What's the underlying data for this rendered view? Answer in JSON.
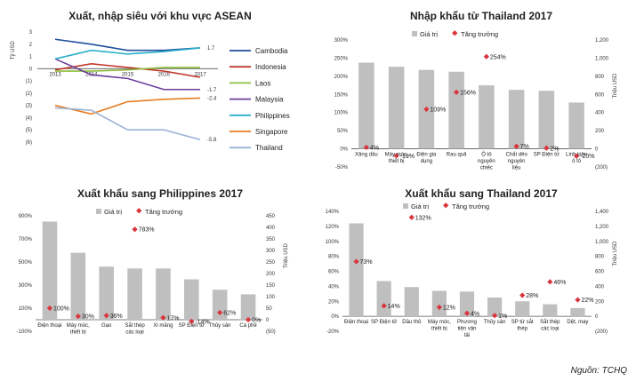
{
  "source": "Nguồn: TCHQ",
  "chart_data": [
    {
      "type": "line",
      "title": "Xuất, nhập siêu với khu vực ASEAN",
      "ylabel": "Tỷ USD",
      "ylim": [
        -6,
        3
      ],
      "yticks": [
        "3",
        "2",
        "1",
        "0",
        "(1)",
        "(2)",
        "(3)",
        "(4)",
        "(5)",
        "(6)"
      ],
      "x": [
        "2013",
        "2014",
        "2015",
        "2016",
        "2017"
      ],
      "legend_position": "right",
      "end_labels": [
        "1.7",
        "-1.7",
        "-2.4",
        "-5.8"
      ],
      "series": [
        {
          "name": "Cambodia",
          "color": "#1f4e9c",
          "values": [
            2.4,
            2.0,
            1.5,
            1.5,
            1.7
          ]
        },
        {
          "name": "Indonesia",
          "color": "#c0392b",
          "values": [
            -0.1,
            0.4,
            0.1,
            -0.2,
            -0.7
          ]
        },
        {
          "name": "Laos",
          "color": "#8fbc3c",
          "values": [
            -0.2,
            -0.2,
            -0.1,
            0.1,
            0.1
          ]
        },
        {
          "name": "Malaysia",
          "color": "#6a3d9a",
          "values": [
            0.8,
            -0.5,
            -0.8,
            -1.7,
            -1.7
          ]
        },
        {
          "name": "Philippines",
          "color": "#2ab0c8",
          "values": [
            0.8,
            1.5,
            1.2,
            1.4,
            1.7
          ]
        },
        {
          "name": "Singapore",
          "color": "#e67e22",
          "values": [
            -3.0,
            -3.7,
            -2.7,
            -2.5,
            -2.4
          ]
        },
        {
          "name": "Thailand",
          "color": "#9db3d6",
          "values": [
            -3.2,
            -3.4,
            -5.0,
            -5.0,
            -5.8
          ]
        }
      ]
    },
    {
      "type": "bar",
      "title": "Nhập khẩu từ Thailand 2017",
      "legend": {
        "bar": "Giá trị",
        "marker": "Tăng trưởng"
      },
      "left_axis": {
        "ticks": [
          "300%",
          "250%",
          "200%",
          "150%",
          "100%",
          "50%",
          "0%",
          "-50%"
        ],
        "ylim": [
          -50,
          300
        ]
      },
      "right_axis": {
        "label": "Triệu USD",
        "ticks": [
          "1,200",
          "1,000",
          "800",
          "600",
          "400",
          "200",
          "0",
          "(200)"
        ],
        "ylim": [
          -200,
          1200
        ]
      },
      "categories": [
        "Xăng dầu",
        "Máy móc, thiết bị",
        "Điện gia dụng",
        "Rau quả",
        "Ô tô nguyên chiếc",
        "Chất dẻo nguyên liệu",
        "SP Điện tử",
        "Linh kiện ô tô"
      ],
      "values": [
        950,
        905,
        870,
        850,
        700,
        650,
        640,
        510
      ],
      "growth": [
        4,
        -19,
        109,
        156,
        254,
        7,
        2,
        -20
      ],
      "growth_labels": [
        "4%",
        "-19%",
        "109%",
        "156%",
        "254%",
        "7%",
        "2%",
        "-20%"
      ]
    },
    {
      "type": "bar",
      "title": "Xuất khẩu sang Philippines 2017",
      "legend": {
        "bar": "Giá trị",
        "marker": "Tăng trưởng"
      },
      "left_axis": {
        "ticks": [
          "900%",
          "700%",
          "500%",
          "300%",
          "100%",
          "-100%"
        ],
        "ylim": [
          -100,
          900
        ]
      },
      "right_axis": {
        "label": "Triệu USD",
        "ticks": [
          "450",
          "400",
          "350",
          "300",
          "250",
          "200",
          "150",
          "100",
          "50",
          "0",
          "(50)"
        ],
        "ylim": [
          -50,
          450
        ]
      },
      "categories": [
        "Điện thoại",
        "Máy móc, thiết bị",
        "Gạo",
        "Sắt thép các loại",
        "Xi măng",
        "SP Điện tử",
        "Thủy sản",
        "Cà phê"
      ],
      "values": [
        425,
        290,
        230,
        222,
        222,
        175,
        130,
        110
      ],
      "growth": [
        100,
        30,
        36,
        783,
        17,
        -14,
        62,
        0
      ],
      "growth_labels": [
        "100%",
        "30%",
        "36%",
        "783%",
        "17%",
        "-14%",
        "62%",
        "0%"
      ]
    },
    {
      "type": "bar",
      "title": "Xuất khẩu sang Thailand 2017",
      "legend": {
        "bar": "Giá trị",
        "marker": "Tăng trưởng"
      },
      "left_axis": {
        "ticks": [
          "140%",
          "120%",
          "100%",
          "80%",
          "60%",
          "40%",
          "20%",
          "0%",
          "-20%"
        ],
        "ylim": [
          -20,
          140
        ]
      },
      "right_axis": {
        "label": "Triệu USD",
        "ticks": [
          "1,400",
          "1,200",
          "1,000",
          "800",
          "600",
          "400",
          "200",
          "0",
          "(200)"
        ],
        "ylim": [
          -200,
          1400
        ]
      },
      "categories": [
        "Điện thoại",
        "SP Điện tử",
        "Dầu thô",
        "Máy móc, thiết bị",
        "Phương tiện vận tải",
        "Thủy sản",
        "SP từ sắt thép",
        "Sắt thép các loại",
        "Dệt, may"
      ],
      "values": [
        1240,
        470,
        390,
        340,
        330,
        250,
        200,
        160,
        110
      ],
      "growth": [
        73,
        14,
        132,
        12,
        4,
        1,
        28,
        46,
        22
      ],
      "growth_labels": [
        "73%",
        "14%",
        "132%",
        "12%",
        "4%",
        "1%",
        "28%",
        "46%",
        "22%"
      ]
    }
  ]
}
